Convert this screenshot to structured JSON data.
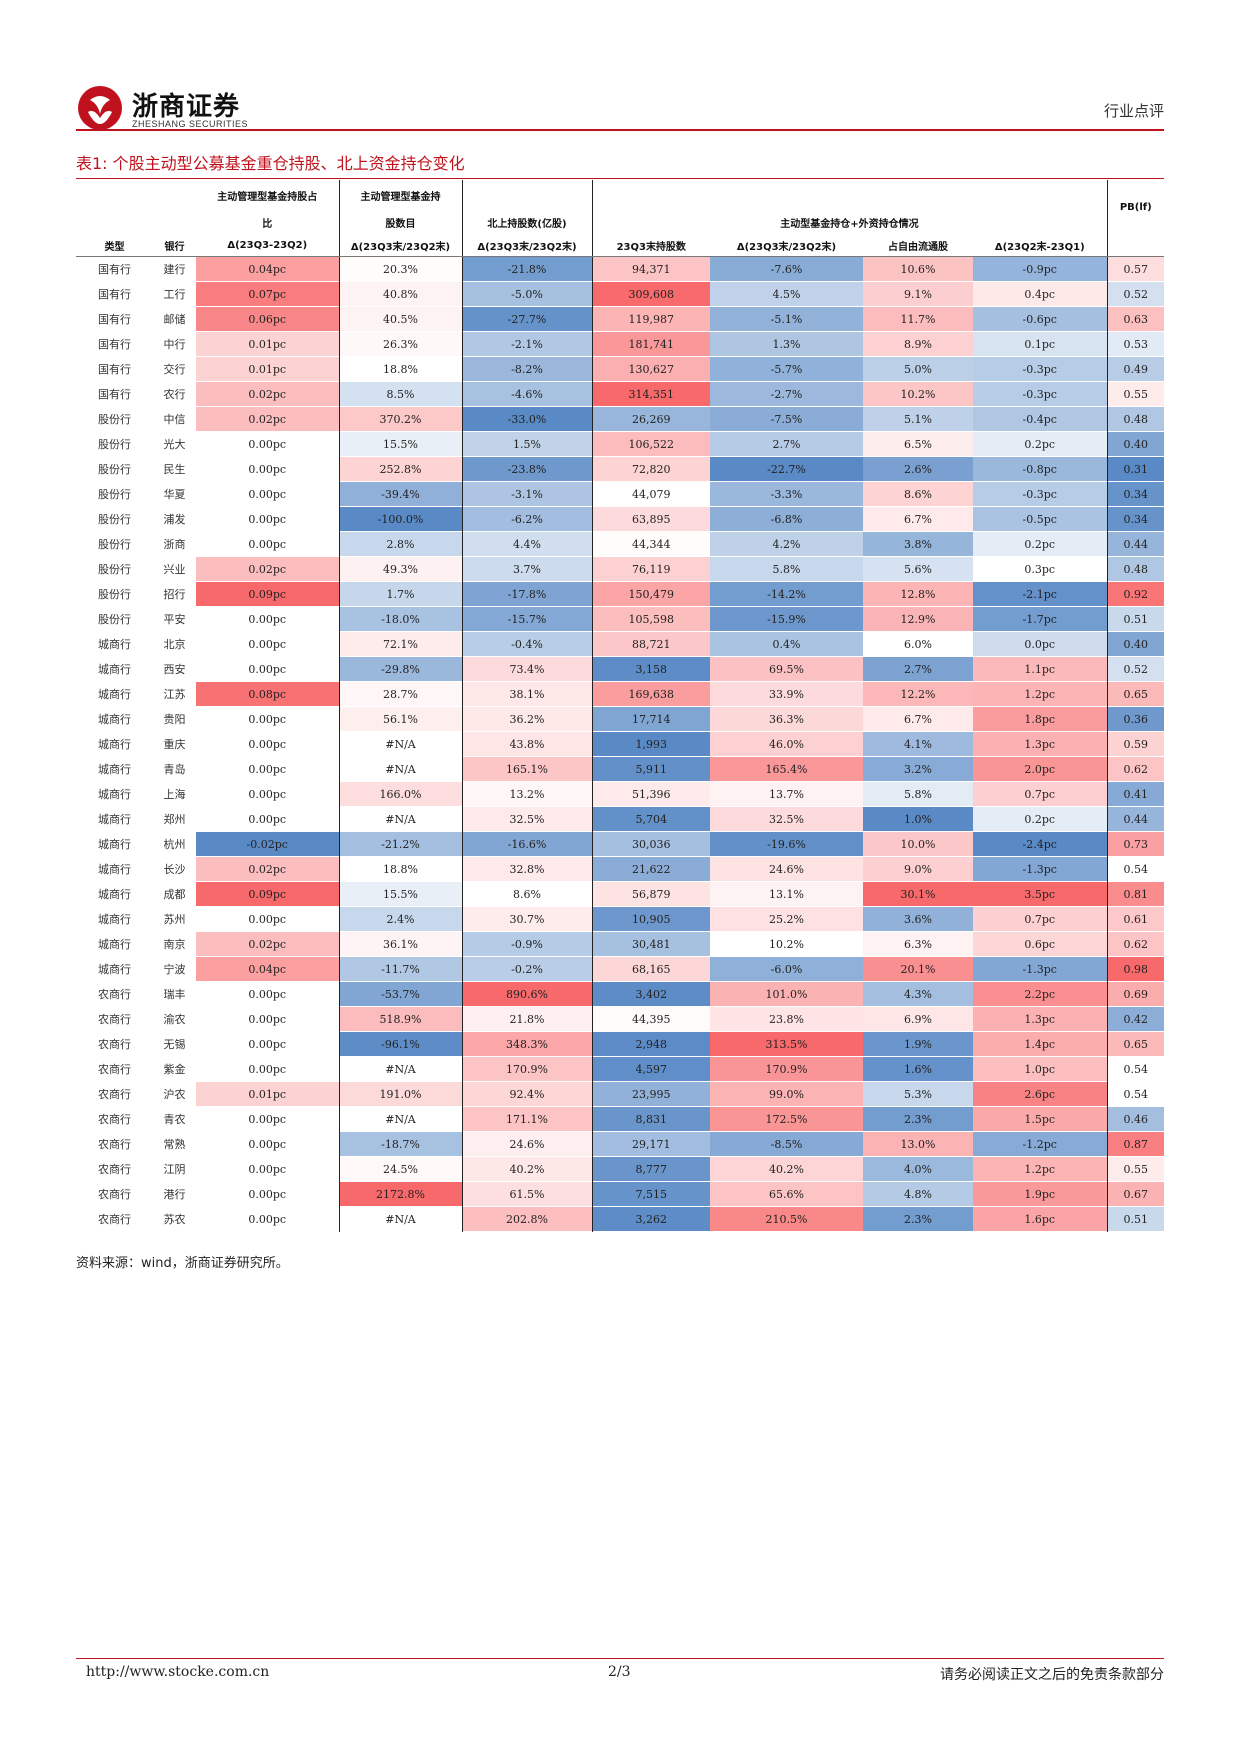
{
  "header": {
    "logo_cn": "浙商证券",
    "logo_en": "ZHESHANG SECURITIES",
    "section": "行业点评"
  },
  "table_title": "表1:  个股主动型公募基金重仓持股、北上资金持仓变化",
  "columns": {
    "type": "类型",
    "bank": "银行",
    "fund_ratio_l1": "主动管理型基金持股占",
    "fund_ratio_l2": "比",
    "fund_ratio_l3": "Δ(23Q3-23Q2)",
    "fund_count_l1": "主动管理型基金持",
    "fund_count_l2": "股数目",
    "fund_count_l3": "Δ(23Q3末/23Q2末)",
    "north_l2": "北上持股数(亿股)",
    "north_l3": "Δ(23Q3末/23Q2末)",
    "combined_l2": "主动型基金持仓+外资持仓情况",
    "shares": "23Q3末持股数",
    "chg": "Δ(23Q3末/23Q2末)",
    "free_float": "占自由流通股",
    "q_chg": "Δ(23Q2末-23Q1)",
    "pb": "PB(lf)"
  },
  "colors": {
    "accent": "#c0121e",
    "heat_red": "#f8696b",
    "heat_blue": "#5a8ac6",
    "heat_mid": "#ffffff"
  },
  "rows": [
    {
      "type": "国有行",
      "bank": "建行",
      "fund_ratio": "0.04pc",
      "fund_count": "20.3%",
      "north": "-21.8%",
      "shares": "94,371",
      "chg": "-7.6%",
      "free_float": "10.6%",
      "q_chg": "-0.9pc",
      "pb": "0.57"
    },
    {
      "type": "国有行",
      "bank": "工行",
      "fund_ratio": "0.07pc",
      "fund_count": "40.8%",
      "north": "-5.0%",
      "shares": "309,608",
      "chg": "4.5%",
      "free_float": "9.1%",
      "q_chg": "0.4pc",
      "pb": "0.52"
    },
    {
      "type": "国有行",
      "bank": "邮储",
      "fund_ratio": "0.06pc",
      "fund_count": "40.5%",
      "north": "-27.7%",
      "shares": "119,987",
      "chg": "-5.1%",
      "free_float": "11.7%",
      "q_chg": "-0.6pc",
      "pb": "0.63"
    },
    {
      "type": "国有行",
      "bank": "中行",
      "fund_ratio": "0.01pc",
      "fund_count": "26.3%",
      "north": "-2.1%",
      "shares": "181,741",
      "chg": "1.3%",
      "free_float": "8.9%",
      "q_chg": "0.1pc",
      "pb": "0.53"
    },
    {
      "type": "国有行",
      "bank": "交行",
      "fund_ratio": "0.01pc",
      "fund_count": "18.8%",
      "north": "-8.2%",
      "shares": "130,627",
      "chg": "-5.7%",
      "free_float": "5.0%",
      "q_chg": "-0.3pc",
      "pb": "0.49"
    },
    {
      "type": "国有行",
      "bank": "农行",
      "fund_ratio": "0.02pc",
      "fund_count": "8.5%",
      "north": "-4.6%",
      "shares": "314,351",
      "chg": "-2.7%",
      "free_float": "10.2%",
      "q_chg": "-0.3pc",
      "pb": "0.55"
    },
    {
      "type": "股份行",
      "bank": "中信",
      "fund_ratio": "0.02pc",
      "fund_count": "370.2%",
      "north": "-33.0%",
      "shares": "26,269",
      "chg": "-7.5%",
      "free_float": "5.1%",
      "q_chg": "-0.4pc",
      "pb": "0.48"
    },
    {
      "type": "股份行",
      "bank": "光大",
      "fund_ratio": "0.00pc",
      "fund_count": "15.5%",
      "north": "1.5%",
      "shares": "106,522",
      "chg": "2.7%",
      "free_float": "6.5%",
      "q_chg": "0.2pc",
      "pb": "0.40"
    },
    {
      "type": "股份行",
      "bank": "民生",
      "fund_ratio": "0.00pc",
      "fund_count": "252.8%",
      "north": "-23.8%",
      "shares": "72,820",
      "chg": "-22.7%",
      "free_float": "2.6%",
      "q_chg": "-0.8pc",
      "pb": "0.31"
    },
    {
      "type": "股份行",
      "bank": "华夏",
      "fund_ratio": "0.00pc",
      "fund_count": "-39.4%",
      "north": "-3.1%",
      "shares": "44,079",
      "chg": "-3.3%",
      "free_float": "8.6%",
      "q_chg": "-0.3pc",
      "pb": "0.34"
    },
    {
      "type": "股份行",
      "bank": "浦发",
      "fund_ratio": "0.00pc",
      "fund_count": "-100.0%",
      "north": "-6.2%",
      "shares": "63,895",
      "chg": "-6.8%",
      "free_float": "6.7%",
      "q_chg": "-0.5pc",
      "pb": "0.34"
    },
    {
      "type": "股份行",
      "bank": "浙商",
      "fund_ratio": "0.00pc",
      "fund_count": "2.8%",
      "north": "4.4%",
      "shares": "44,344",
      "chg": "4.2%",
      "free_float": "3.8%",
      "q_chg": "0.2pc",
      "pb": "0.44"
    },
    {
      "type": "股份行",
      "bank": "兴业",
      "fund_ratio": "0.02pc",
      "fund_count": "49.3%",
      "north": "3.7%",
      "shares": "76,119",
      "chg": "5.8%",
      "free_float": "5.6%",
      "q_chg": "0.3pc",
      "pb": "0.48"
    },
    {
      "type": "股份行",
      "bank": "招行",
      "fund_ratio": "0.09pc",
      "fund_count": "1.7%",
      "north": "-17.8%",
      "shares": "150,479",
      "chg": "-14.2%",
      "free_float": "12.8%",
      "q_chg": "-2.1pc",
      "pb": "0.92"
    },
    {
      "type": "股份行",
      "bank": "平安",
      "fund_ratio": "0.00pc",
      "fund_count": "-18.0%",
      "north": "-15.7%",
      "shares": "105,598",
      "chg": "-15.9%",
      "free_float": "12.9%",
      "q_chg": "-1.7pc",
      "pb": "0.51"
    },
    {
      "type": "城商行",
      "bank": "北京",
      "fund_ratio": "0.00pc",
      "fund_count": "72.1%",
      "north": "-0.4%",
      "shares": "88,721",
      "chg": "0.4%",
      "free_float": "6.0%",
      "q_chg": "0.0pc",
      "pb": "0.40"
    },
    {
      "type": "城商行",
      "bank": "西安",
      "fund_ratio": "0.00pc",
      "fund_count": "-29.8%",
      "north": "73.4%",
      "shares": "3,158",
      "chg": "69.5%",
      "free_float": "2.7%",
      "q_chg": "1.1pc",
      "pb": "0.52"
    },
    {
      "type": "城商行",
      "bank": "江苏",
      "fund_ratio": "0.08pc",
      "fund_count": "28.7%",
      "north": "38.1%",
      "shares": "169,638",
      "chg": "33.9%",
      "free_float": "12.2%",
      "q_chg": "1.2pc",
      "pb": "0.65"
    },
    {
      "type": "城商行",
      "bank": "贵阳",
      "fund_ratio": "0.00pc",
      "fund_count": "56.1%",
      "north": "36.2%",
      "shares": "17,714",
      "chg": "36.3%",
      "free_float": "6.7%",
      "q_chg": "1.8pc",
      "pb": "0.36"
    },
    {
      "type": "城商行",
      "bank": "重庆",
      "fund_ratio": "0.00pc",
      "fund_count": "#N/A",
      "north": "43.8%",
      "shares": "1,993",
      "chg": "46.0%",
      "free_float": "4.1%",
      "q_chg": "1.3pc",
      "pb": "0.59"
    },
    {
      "type": "城商行",
      "bank": "青岛",
      "fund_ratio": "0.00pc",
      "fund_count": "#N/A",
      "north": "165.1%",
      "shares": "5,911",
      "chg": "165.4%",
      "free_float": "3.2%",
      "q_chg": "2.0pc",
      "pb": "0.62"
    },
    {
      "type": "城商行",
      "bank": "上海",
      "fund_ratio": "0.00pc",
      "fund_count": "166.0%",
      "north": "13.2%",
      "shares": "51,396",
      "chg": "13.7%",
      "free_float": "5.8%",
      "q_chg": "0.7pc",
      "pb": "0.41"
    },
    {
      "type": "城商行",
      "bank": "郑州",
      "fund_ratio": "0.00pc",
      "fund_count": "#N/A",
      "north": "32.5%",
      "shares": "5,704",
      "chg": "32.5%",
      "free_float": "1.0%",
      "q_chg": "0.2pc",
      "pb": "0.44"
    },
    {
      "type": "城商行",
      "bank": "杭州",
      "fund_ratio": "-0.02pc",
      "fund_count": "-21.2%",
      "north": "-16.6%",
      "shares": "30,036",
      "chg": "-19.6%",
      "free_float": "10.0%",
      "q_chg": "-2.4pc",
      "pb": "0.73"
    },
    {
      "type": "城商行",
      "bank": "长沙",
      "fund_ratio": "0.02pc",
      "fund_count": "18.8%",
      "north": "32.8%",
      "shares": "21,622",
      "chg": "24.6%",
      "free_float": "9.0%",
      "q_chg": "-1.3pc",
      "pb": "0.54"
    },
    {
      "type": "城商行",
      "bank": "成都",
      "fund_ratio": "0.09pc",
      "fund_count": "15.5%",
      "north": "8.6%",
      "shares": "56,879",
      "chg": "13.1%",
      "free_float": "30.1%",
      "q_chg": "3.5pc",
      "pb": "0.81"
    },
    {
      "type": "城商行",
      "bank": "苏州",
      "fund_ratio": "0.00pc",
      "fund_count": "2.4%",
      "north": "30.7%",
      "shares": "10,905",
      "chg": "25.2%",
      "free_float": "3.6%",
      "q_chg": "0.7pc",
      "pb": "0.61"
    },
    {
      "type": "城商行",
      "bank": "南京",
      "fund_ratio": "0.02pc",
      "fund_count": "36.1%",
      "north": "-0.9%",
      "shares": "30,481",
      "chg": "10.2%",
      "free_float": "6.3%",
      "q_chg": "0.6pc",
      "pb": "0.62"
    },
    {
      "type": "城商行",
      "bank": "宁波",
      "fund_ratio": "0.04pc",
      "fund_count": "-11.7%",
      "north": "-0.2%",
      "shares": "68,165",
      "chg": "-6.0%",
      "free_float": "20.1%",
      "q_chg": "-1.3pc",
      "pb": "0.98"
    },
    {
      "type": "农商行",
      "bank": "瑞丰",
      "fund_ratio": "0.00pc",
      "fund_count": "-53.7%",
      "north": "890.6%",
      "shares": "3,402",
      "chg": "101.0%",
      "free_float": "4.3%",
      "q_chg": "2.2pc",
      "pb": "0.69"
    },
    {
      "type": "农商行",
      "bank": "渝农",
      "fund_ratio": "0.00pc",
      "fund_count": "518.9%",
      "north": "21.8%",
      "shares": "44,395",
      "chg": "23.8%",
      "free_float": "6.9%",
      "q_chg": "1.3pc",
      "pb": "0.42"
    },
    {
      "type": "农商行",
      "bank": "无锡",
      "fund_ratio": "0.00pc",
      "fund_count": "-96.1%",
      "north": "348.3%",
      "shares": "2,948",
      "chg": "313.5%",
      "free_float": "1.9%",
      "q_chg": "1.4pc",
      "pb": "0.65"
    },
    {
      "type": "农商行",
      "bank": "紫金",
      "fund_ratio": "0.00pc",
      "fund_count": "#N/A",
      "north": "170.9%",
      "shares": "4,597",
      "chg": "170.9%",
      "free_float": "1.6%",
      "q_chg": "1.0pc",
      "pb": "0.54"
    },
    {
      "type": "农商行",
      "bank": "沪农",
      "fund_ratio": "0.01pc",
      "fund_count": "191.0%",
      "north": "92.4%",
      "shares": "23,995",
      "chg": "99.0%",
      "free_float": "5.3%",
      "q_chg": "2.6pc",
      "pb": "0.54"
    },
    {
      "type": "农商行",
      "bank": "青农",
      "fund_ratio": "0.00pc",
      "fund_count": "#N/A",
      "north": "171.1%",
      "shares": "8,831",
      "chg": "172.5%",
      "free_float": "2.3%",
      "q_chg": "1.5pc",
      "pb": "0.46"
    },
    {
      "type": "农商行",
      "bank": "常熟",
      "fund_ratio": "0.00pc",
      "fund_count": "-18.7%",
      "north": "24.6%",
      "shares": "29,171",
      "chg": "-8.5%",
      "free_float": "13.0%",
      "q_chg": "-1.2pc",
      "pb": "0.87"
    },
    {
      "type": "农商行",
      "bank": "江阴",
      "fund_ratio": "0.00pc",
      "fund_count": "24.5%",
      "north": "40.2%",
      "shares": "8,777",
      "chg": "40.2%",
      "free_float": "4.0%",
      "q_chg": "1.2pc",
      "pb": "0.55"
    },
    {
      "type": "农商行",
      "bank": "港行",
      "fund_ratio": "0.00pc",
      "fund_count": "2172.8%",
      "north": "61.5%",
      "shares": "7,515",
      "chg": "65.6%",
      "free_float": "4.8%",
      "q_chg": "1.9pc",
      "pb": "0.67"
    },
    {
      "type": "农商行",
      "bank": "苏农",
      "fund_ratio": "0.00pc",
      "fund_count": "#N/A",
      "north": "202.8%",
      "shares": "3,262",
      "chg": "210.5%",
      "free_float": "2.3%",
      "q_chg": "1.6pc",
      "pb": "0.51"
    }
  ],
  "source": "资料来源：wind，浙商证券研究所。",
  "footer": {
    "url": "http://www.stocke.com.cn",
    "page": "2/3",
    "disclaimer": "请务必阅读正文之后的免责条款部分"
  }
}
